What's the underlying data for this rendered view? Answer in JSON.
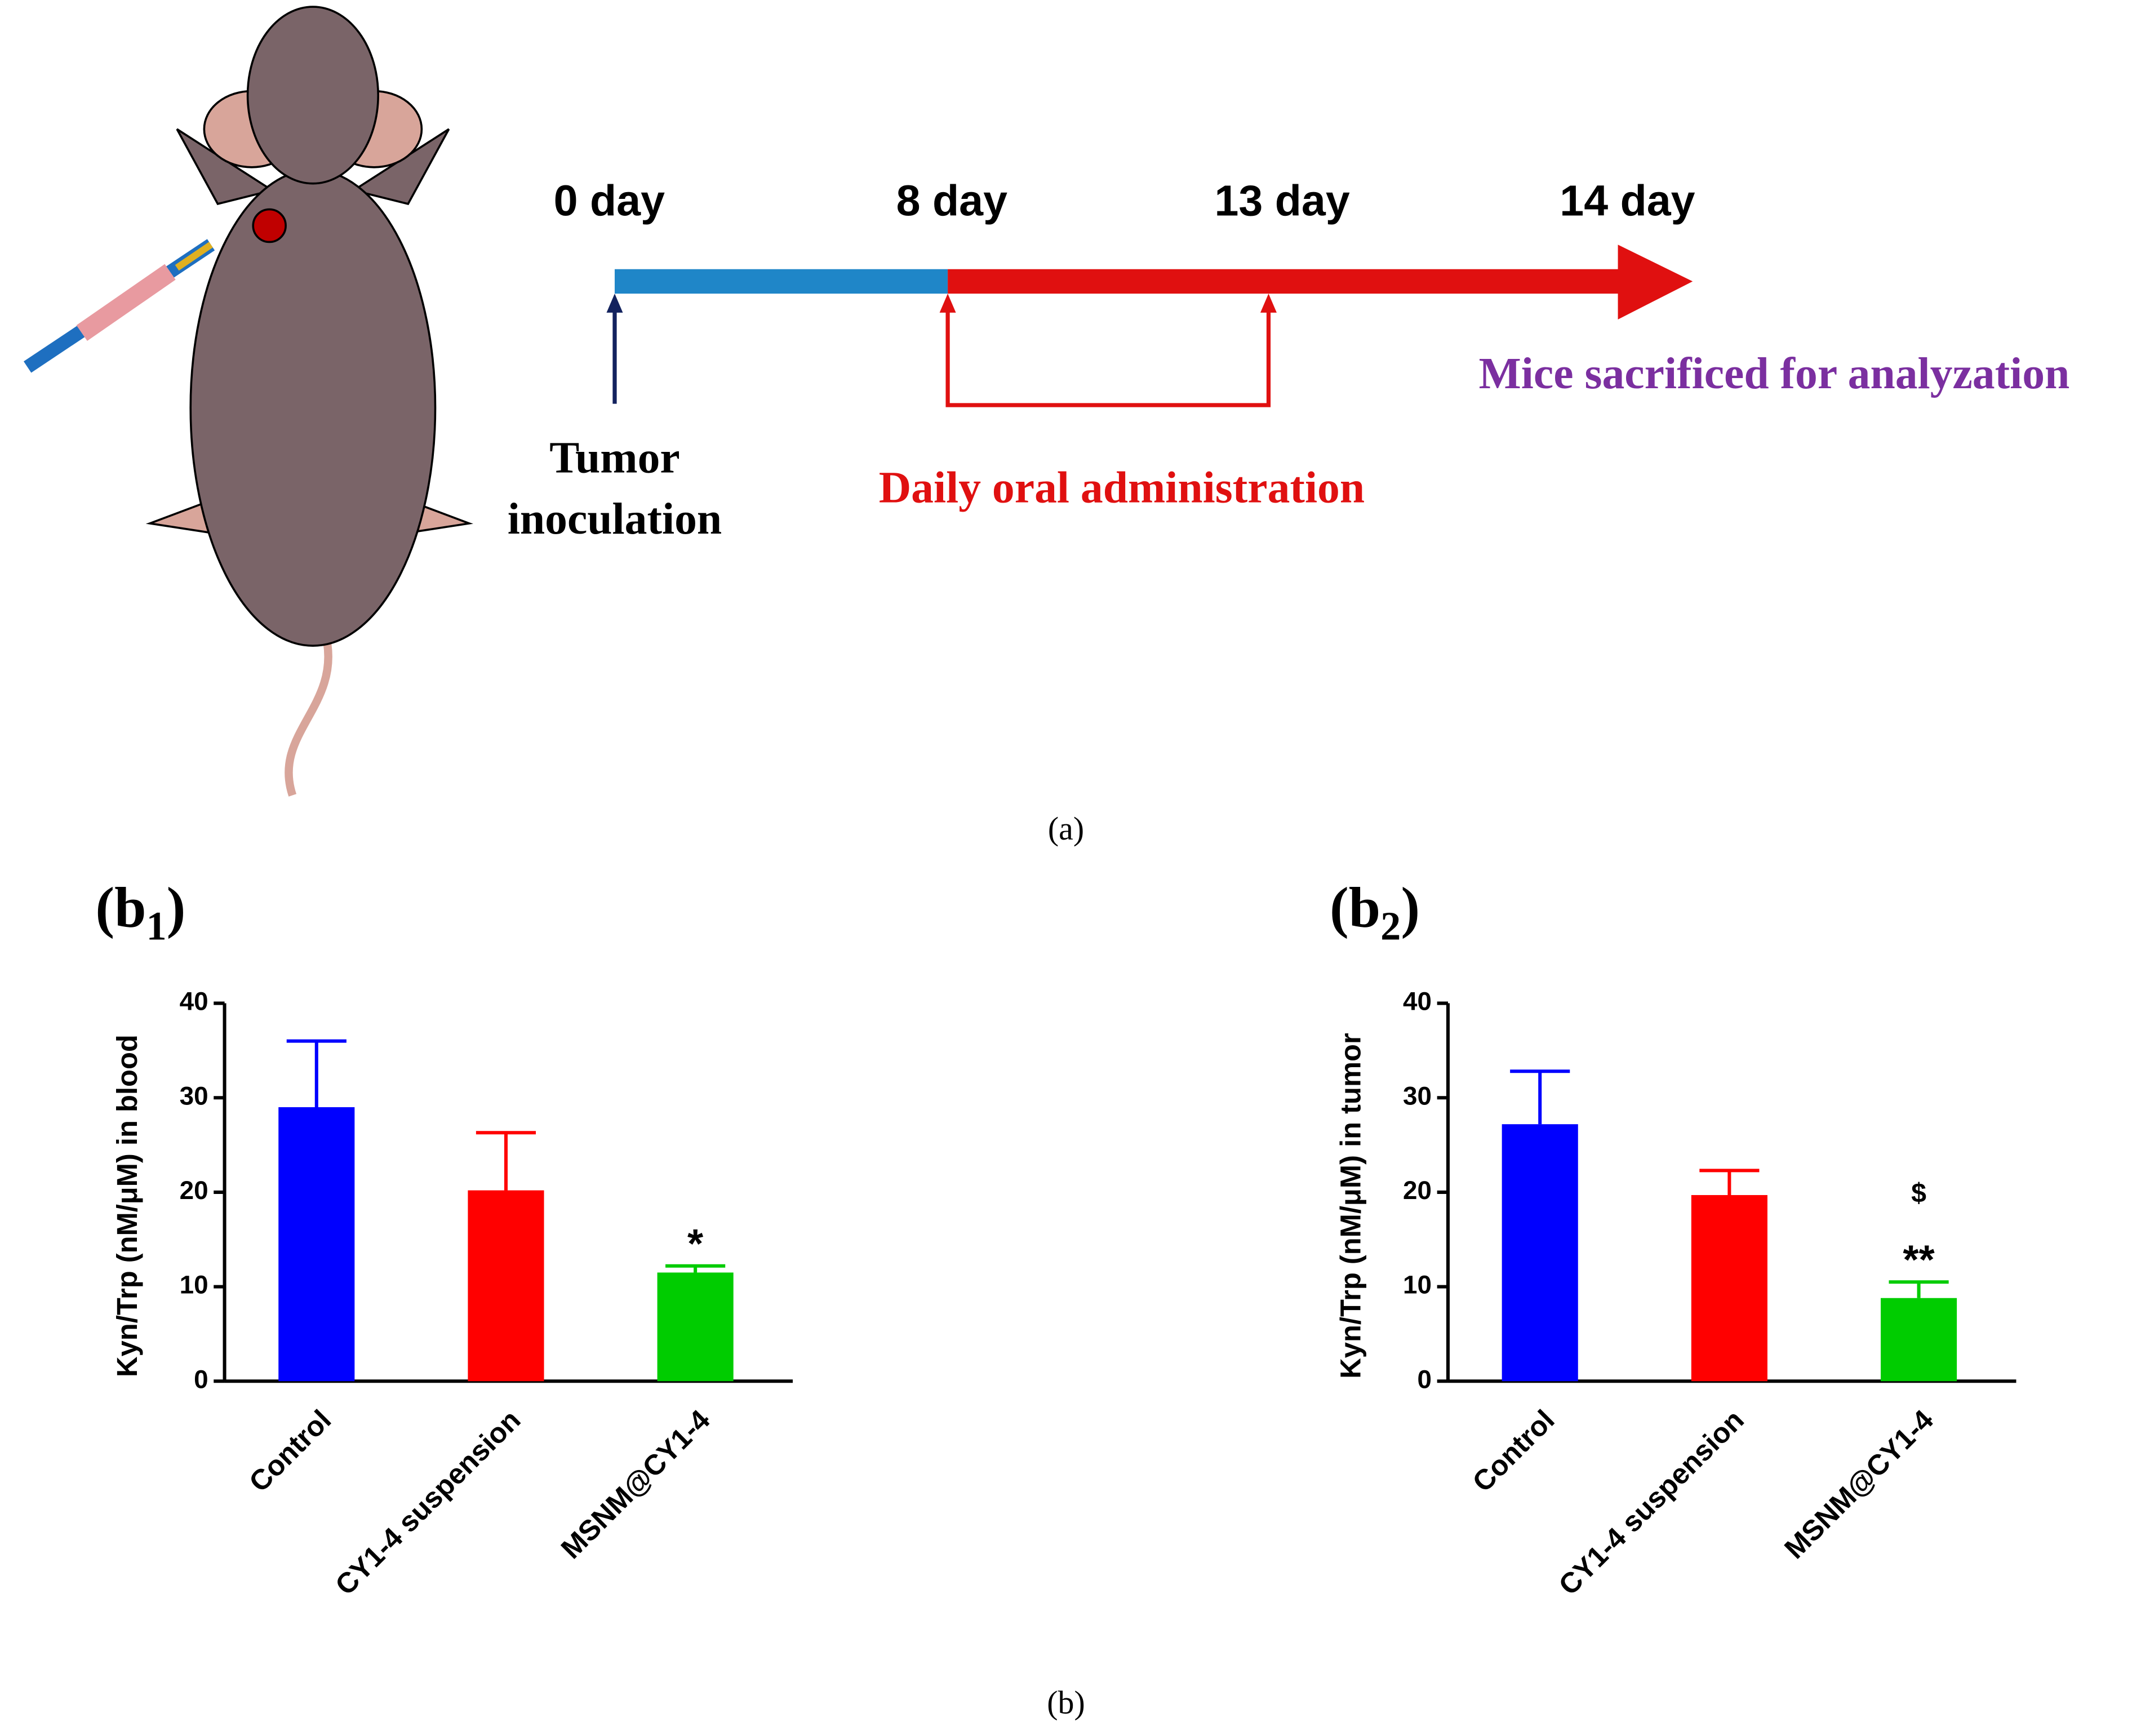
{
  "timeline": {
    "days": [
      "0 day",
      "8 day",
      "13 day",
      "14 day"
    ],
    "inoculation": [
      "Tumor",
      "inoculation"
    ],
    "administration": "Daily oral administration",
    "sacrifice": "Mice sacrificed for analyzation",
    "caption": "(a)"
  },
  "caption_b": "(b)",
  "chart_data": [
    {
      "type": "bar",
      "panel_label": [
        "(b",
        "1",
        ")"
      ],
      "ylabel": "Kyn/Trp (nM/μM) in blood",
      "categories": [
        "Control",
        "CY1-4 suspension",
        "MSNM@CY1-4"
      ],
      "values": [
        29,
        20.2,
        11.5
      ],
      "errors": [
        7,
        6.1,
        0.7
      ],
      "colors": [
        "#0000ff",
        "#ff0000",
        "#00cc00"
      ],
      "annotations": [
        [],
        [],
        [
          "*"
        ]
      ],
      "ylim": [
        0,
        40
      ],
      "yticks": [
        0,
        10,
        20,
        30,
        40
      ]
    },
    {
      "type": "bar",
      "panel_label": [
        "(b",
        "2",
        ")"
      ],
      "ylabel": "Kyn/Trp (nM/μM) in tumor",
      "categories": [
        "Control",
        "CY1-4 suspension",
        "MSNM@CY1-4"
      ],
      "values": [
        27.2,
        19.7,
        8.8
      ],
      "errors": [
        5.6,
        2.6,
        1.7
      ],
      "colors": [
        "#0000ff",
        "#ff0000",
        "#00cc00"
      ],
      "annotations": [
        [],
        [],
        [
          "$",
          "**"
        ]
      ],
      "ylim": [
        0,
        40
      ],
      "yticks": [
        0,
        10,
        20,
        30,
        40
      ]
    }
  ]
}
